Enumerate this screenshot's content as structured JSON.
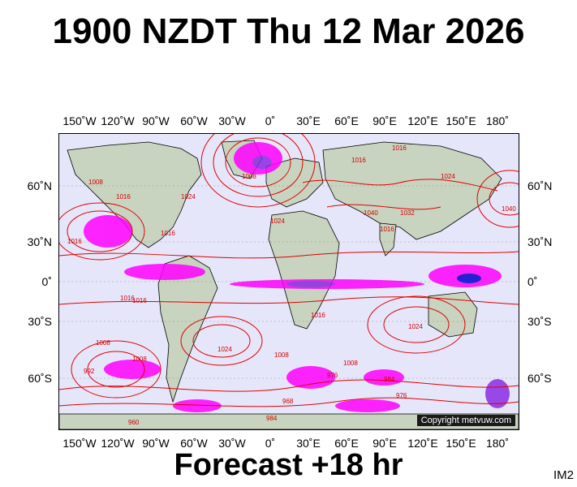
{
  "title": "1900 NZDT Thu 12 Mar 2026",
  "footer": "Forecast +18 hr",
  "corner_label": "IM2",
  "copyright": "Copyright metvuw.com",
  "axes": {
    "longitudes": [
      "150˚W",
      "120˚W",
      "90˚W",
      "60˚W",
      "30˚W",
      "0˚",
      "30˚E",
      "60˚E",
      "90˚E",
      "120˚E",
      "150˚E",
      "180˚"
    ],
    "latitudes": [
      "60˚N",
      "30˚N",
      "0˚",
      "30˚S",
      "60˚S"
    ]
  },
  "pressure_labels": [
    "1008",
    "1016",
    "1016",
    "1024",
    "1016",
    "1024",
    "1008",
    "1016",
    "1016",
    "1024",
    "1040",
    "1032",
    "1016",
    "1040",
    "1016",
    "1024",
    "1008",
    "1008",
    "992",
    "1008",
    "1016",
    "1024",
    "1008",
    "984",
    "976",
    "968",
    "960",
    "984",
    "976",
    "1016"
  ],
  "colors": {
    "ocean": "#e6e6fa",
    "land": "#c8d4c0",
    "isobar": "#e00000",
    "precip_light": "#ff00ff",
    "precip_mid": "#8a2be2",
    "precip_heavy": "#0000cd"
  }
}
